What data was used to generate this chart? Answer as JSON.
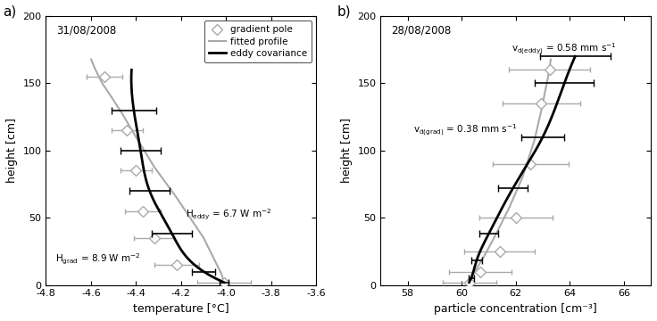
{
  "panel_a": {
    "date": "31/08/2008",
    "xlabel": "temperature [°C]",
    "ylabel": "height [cm]",
    "xlim": [
      -4.8,
      -3.6
    ],
    "ylim": [
      0,
      200
    ],
    "xticks": [
      -4.8,
      -4.6,
      -4.4,
      -4.2,
      -4.0,
      -3.8,
      -3.6
    ],
    "yticks": [
      0,
      50,
      100,
      150,
      200
    ],
    "gradient_pole_x": [
      -4.54,
      -4.44,
      -4.4,
      -4.37,
      -4.32,
      -4.22,
      -4.01
    ],
    "gradient_pole_y": [
      155,
      115,
      85,
      55,
      35,
      15,
      2
    ],
    "gradient_pole_xerr": [
      0.08,
      0.07,
      0.07,
      0.08,
      0.09,
      0.1,
      0.12
    ],
    "fitted_profile_x": [
      -4.6,
      -4.58,
      -4.55,
      -4.51,
      -4.46,
      -4.4,
      -4.32,
      -4.22,
      -4.1,
      -4.02,
      -4.01
    ],
    "fitted_profile_y": [
      168,
      160,
      150,
      140,
      127,
      110,
      88,
      65,
      35,
      8,
      2
    ],
    "eddy_cov_x": [
      -4.42,
      -4.41,
      -4.38,
      -4.34,
      -4.24,
      -4.1,
      -4.01
    ],
    "eddy_cov_y": [
      160,
      130,
      100,
      70,
      38,
      10,
      2
    ],
    "eddy_cov_xerr_left": [
      0.0,
      0.1,
      0.09,
      0.09,
      0.09,
      0.05,
      0.02
    ],
    "eddy_cov_xerr_right": [
      0.0,
      0.1,
      0.09,
      0.09,
      0.09,
      0.05,
      0.02
    ]
  },
  "panel_b": {
    "date": "28/08/2008",
    "xlabel": "particle concentration [cm⁻³]",
    "ylabel": "height [cm]",
    "xlim": [
      57,
      67
    ],
    "ylim": [
      0,
      200
    ],
    "xticks": [
      58,
      60,
      62,
      64,
      66
    ],
    "yticks": [
      0,
      50,
      100,
      150,
      200
    ],
    "gradient_pole_x": [
      60.3,
      60.7,
      61.4,
      62.0,
      62.55,
      62.95,
      63.25
    ],
    "gradient_pole_y": [
      2,
      10,
      25,
      50,
      90,
      135,
      160
    ],
    "gradient_pole_xerr": [
      1.0,
      1.15,
      1.3,
      1.35,
      1.4,
      1.45,
      1.5
    ],
    "fitted_profile_x": [
      60.25,
      60.35,
      60.55,
      60.85,
      61.25,
      61.75,
      62.25,
      62.7,
      62.95,
      63.2,
      63.3
    ],
    "fitted_profile_y": [
      2,
      5,
      12,
      22,
      37,
      57,
      80,
      108,
      130,
      155,
      168
    ],
    "eddy_cov_x": [
      60.28,
      60.35,
      60.55,
      61.0,
      61.9,
      63.0,
      63.8,
      64.2
    ],
    "eddy_cov_y": [
      2,
      5,
      18,
      38,
      72,
      110,
      150,
      170
    ],
    "eddy_cov_xerr_left": [
      0.05,
      0.1,
      0.2,
      0.35,
      0.55,
      0.8,
      1.1,
      1.3
    ],
    "eddy_cov_xerr_right": [
      0.05,
      0.1,
      0.2,
      0.35,
      0.55,
      0.8,
      1.1,
      1.3
    ]
  },
  "gray_color": "#aaaaaa",
  "black_color": "#000000"
}
